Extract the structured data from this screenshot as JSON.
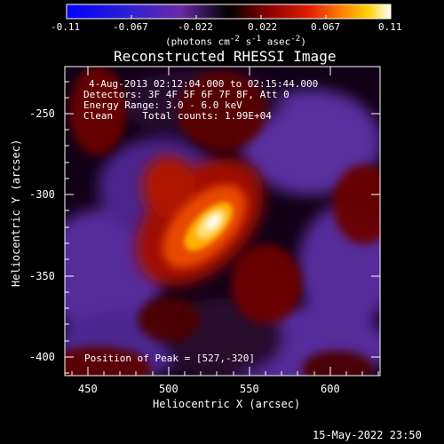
{
  "colorbar": {
    "ticks": [
      "-0.11",
      "-0.067",
      "-0.022",
      "0.022",
      "0.067",
      "0.11"
    ],
    "units_html": "(photons cm<sup>-2</sup> s<sup>-1</sup> asec<sup>-2</sup>)"
  },
  "title": "Reconstructed RHESSI Image",
  "annotations": {
    "time": "4-Aug-2013 02:12:04.000 to 02:15:44.000",
    "detectors": "Detectors: 3F 4F 5F 6F 7F 8F, Att 0",
    "energy": "Energy Range: 3.0 - 6.0 keV",
    "clean": "Clean     Total counts: 1.99E+04",
    "peak": "Position of Peak = [527,-320]"
  },
  "axes": {
    "xlabel": "Heliocentric X (arcsec)",
    "ylabel": "Heliocentric Y (arcsec)",
    "xticks": [
      "450",
      "500",
      "550",
      "600"
    ],
    "yticks": [
      "-250",
      "-300",
      "-350",
      "-400"
    ]
  },
  "footer": "15-May-2022 23:50",
  "colors": {
    "neg": "#5a30a0",
    "peak": "#ffffe0",
    "background": "#000000"
  }
}
